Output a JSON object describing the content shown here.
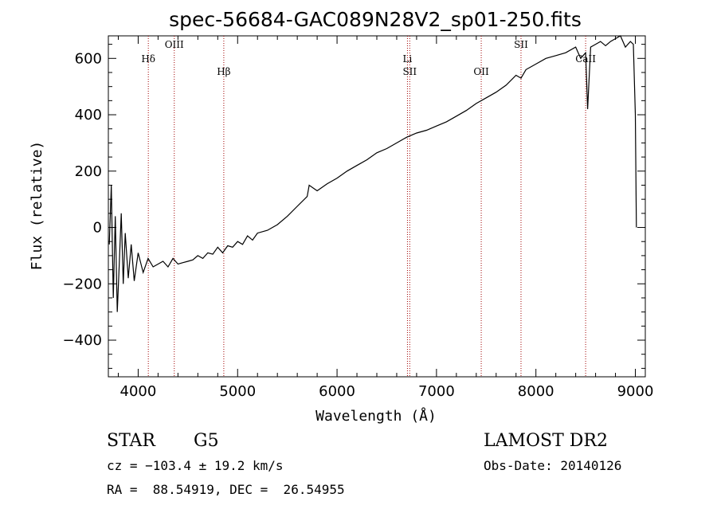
{
  "chart_data": {
    "type": "line",
    "title": "spec-56684-GAC089N28V2_sp01-250.fits",
    "xlabel": "Wavelength (Å)",
    "ylabel": "Flux (relative)",
    "xlim": [
      3700,
      9100
    ],
    "ylim": [
      -530,
      680
    ],
    "xticks": [
      4000,
      5000,
      6000,
      7000,
      8000,
      9000
    ],
    "yticks": [
      -400,
      -200,
      0,
      200,
      400,
      600
    ],
    "grid": false,
    "series": [
      {
        "x": [
          3710,
          3730,
          3750,
          3770,
          3790,
          3810,
          3830,
          3850,
          3870,
          3900,
          3930,
          3960,
          4000,
          4050,
          4100,
          4150,
          4200,
          4250,
          4300,
          4350,
          4400,
          4450,
          4500,
          4550,
          4600,
          4650,
          4700,
          4750,
          4800,
          4850,
          4900,
          4950,
          5000,
          5050,
          5100,
          5150,
          5200,
          5300,
          5400,
          5500,
          5600,
          5700,
          5720,
          5800,
          5900,
          6000,
          6100,
          6200,
          6300,
          6400,
          6500,
          6600,
          6700,
          6800,
          6900,
          7000,
          7100,
          7200,
          7300,
          7400,
          7500,
          7600,
          7700,
          7800,
          7850,
          7900,
          8000,
          8100,
          8200,
          8300,
          8400,
          8450,
          8500,
          8520,
          8550,
          8600,
          8650,
          8700,
          8750,
          8800,
          8850,
          8900,
          8950,
          8980,
          9000,
          9010
        ],
        "y": [
          -60,
          150,
          -250,
          40,
          -300,
          -130,
          50,
          -200,
          -20,
          -180,
          -60,
          -190,
          -90,
          -160,
          -110,
          -140,
          -130,
          -120,
          -140,
          -110,
          -130,
          -125,
          -120,
          -115,
          -100,
          -110,
          -90,
          -95,
          -70,
          -90,
          -65,
          -70,
          -50,
          -60,
          -30,
          -45,
          -20,
          -10,
          10,
          40,
          75,
          110,
          150,
          130,
          155,
          175,
          200,
          220,
          240,
          265,
          280,
          300,
          320,
          335,
          345,
          360,
          375,
          395,
          415,
          440,
          460,
          480,
          505,
          540,
          530,
          560,
          580,
          600,
          610,
          620,
          640,
          600,
          620,
          420,
          640,
          650,
          660,
          645,
          660,
          670,
          680,
          640,
          660,
          650,
          400,
          0
        ]
      }
    ],
    "vertical_lines": [
      {
        "x": 4102,
        "label": "Hδ"
      },
      {
        "x": 4363,
        "label": "OIII"
      },
      {
        "x": 4861,
        "label": "Hβ"
      },
      {
        "x": 6708,
        "label": "Li"
      },
      {
        "x": 6731,
        "label": "SII"
      },
      {
        "x": 7450,
        "label": "OII"
      },
      {
        "x": 7850,
        "label": "SII"
      },
      {
        "x": 8500,
        "label": "CaII"
      }
    ]
  },
  "info": {
    "object_class": "STAR",
    "subclass": "G5",
    "survey": "LAMOST DR2",
    "velocity": "cz = −103.4 ± 19.2 km/s",
    "obs_date": "Obs-Date: 20140126",
    "coords": "RA =  88.54919, DEC =  26.54955"
  }
}
